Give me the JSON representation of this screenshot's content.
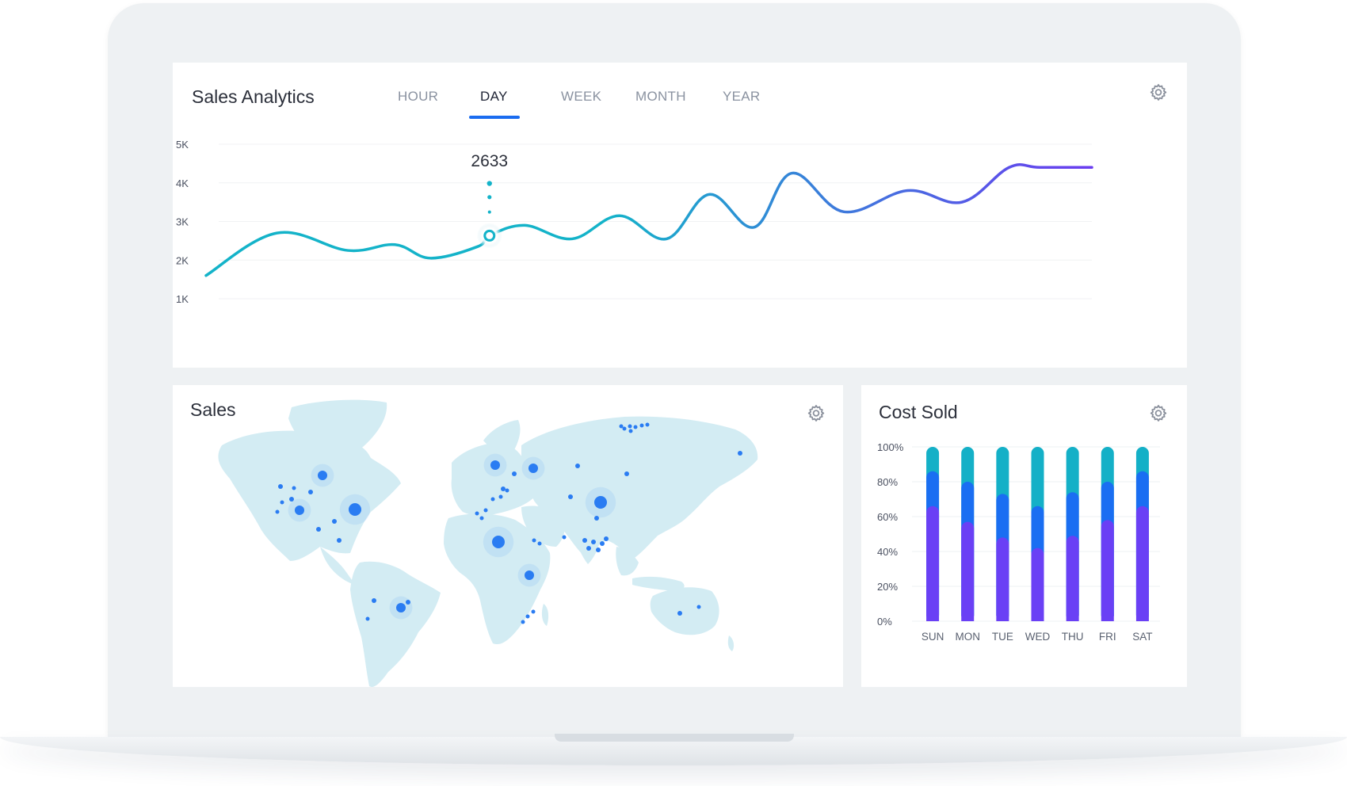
{
  "analytics": {
    "title": "Sales Analytics",
    "tabs": [
      {
        "label": "HOUR",
        "active": false
      },
      {
        "label": "DAY",
        "active": true
      },
      {
        "label": "WEEK",
        "active": false
      },
      {
        "label": "MONTH",
        "active": false
      },
      {
        "label": "YEAR",
        "active": false
      }
    ],
    "settings_icon": "gear-icon"
  },
  "sales": {
    "title": "Sales",
    "settings_icon": "gear-icon"
  },
  "cost": {
    "title": "Cost Sold",
    "settings_icon": "gear-icon"
  },
  "colors": {
    "line_start": "#14b3c9",
    "line_end": "#6a3cf0",
    "tab_accent": "#1a6cf0",
    "map_land": "#d3ecf3",
    "map_dot": "#2a7cf2",
    "stack_bottom": "#6a40f5",
    "stack_middle": "#1a6ef2",
    "stack_top": "#14b0c7"
  },
  "chart_data": [
    {
      "type": "line",
      "yticks": [
        "5K",
        "4K",
        "3K",
        "2K",
        "1K"
      ],
      "ylim": [
        1000,
        5000
      ],
      "grid": true,
      "highlight": {
        "x": 12,
        "value": 2633,
        "label": "2633"
      },
      "x": [
        0,
        3,
        6,
        8,
        9.5,
        11.5,
        12,
        13.5,
        15.5,
        17.5,
        19.5,
        21.3,
        23.2,
        24.8,
        27,
        29.7,
        32,
        34,
        35.3,
        37.5
      ],
      "values": [
        1600,
        2700,
        2250,
        2400,
        2050,
        2350,
        2633,
        2900,
        2550,
        3150,
        2550,
        3700,
        2850,
        4250,
        3250,
        3800,
        3500,
        4400,
        4400,
        4400
      ]
    },
    {
      "type": "bar",
      "stacked": true,
      "categories": [
        "SUN",
        "MON",
        "TUE",
        "WED",
        "THU",
        "FRI",
        "SAT"
      ],
      "yticks": [
        "100%",
        "80%",
        "60%",
        "40%",
        "20%",
        "0%"
      ],
      "ylim": [
        0,
        100
      ],
      "series": [
        {
          "values": [
            66,
            57,
            48,
            42,
            49,
            58,
            66
          ]
        },
        {
          "values": [
            20,
            23,
            25,
            24,
            25,
            22,
            20
          ]
        },
        {
          "values": [
            14,
            20,
            27,
            34,
            26,
            20,
            14
          ]
        }
      ]
    }
  ]
}
